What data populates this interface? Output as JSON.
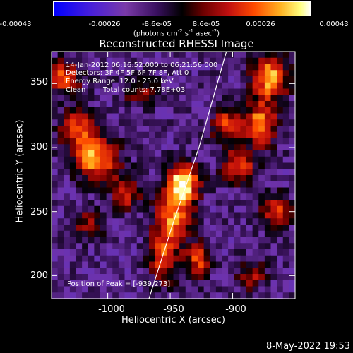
{
  "chart_data": {
    "type": "heatmap",
    "title": "Reconstructed RHESSI Image",
    "xlabel": "Heliocentric X (arcsec)",
    "ylabel": "Heliocentric Y (arcsec)",
    "xlim": [
      -1045,
      -850
    ],
    "ylim": [
      182,
      375
    ],
    "xticks": [
      "-1000",
      "-950",
      "-900"
    ],
    "yticks": [
      "350",
      "300",
      "250",
      "200"
    ],
    "xtick_values": [
      -1000,
      -950,
      -900
    ],
    "ytick_values": [
      350,
      300,
      250,
      200
    ],
    "colorbar": {
      "ticks": [
        "-0.00043",
        "-0.00026",
        "-8.6e-05",
        "8.6e-05",
        "0.00026",
        "0.00043"
      ],
      "range": [
        -0.00043,
        0.00043
      ],
      "unit": "(photons cm",
      "unit_exp1": "-2",
      "unit_mid": " s",
      "unit_exp2": "-1",
      "unit_end": " asec",
      "unit_exp3": "-2",
      "unit_close": ")"
    },
    "annotations": {
      "time_range": "14-Jan-2012 06:16:52.000 to 06:21:56.000",
      "detectors": "Detectors: 3F 4F 5F 6F 7F 8F, Att 0",
      "energy": "Energy Range: 12.0 - 25.0 keV",
      "clean": "Clean",
      "total_counts": "Total counts: 7.78E+03",
      "peak": "Position of Peak = [-939,273]"
    },
    "peak": {
      "x": -939,
      "y": 273
    },
    "sources": [
      {
        "x": -939,
        "y": 273,
        "sx": 9,
        "sy": 10,
        "a": 1.0
      },
      {
        "x": -948,
        "y": 248,
        "sx": 10,
        "sy": 14,
        "a": 0.75
      },
      {
        "x": -955,
        "y": 215,
        "sx": 8,
        "sy": 14,
        "a": 0.65
      },
      {
        "x": -928,
        "y": 212,
        "sx": 7,
        "sy": 10,
        "a": 0.6
      },
      {
        "x": -1010,
        "y": 292,
        "sx": 12,
        "sy": 12,
        "a": 0.85
      },
      {
        "x": -1025,
        "y": 315,
        "sx": 10,
        "sy": 10,
        "a": 0.6
      },
      {
        "x": -985,
        "y": 265,
        "sx": 8,
        "sy": 10,
        "a": 0.55
      },
      {
        "x": -870,
        "y": 355,
        "sx": 10,
        "sy": 12,
        "a": 0.85
      },
      {
        "x": -878,
        "y": 318,
        "sx": 9,
        "sy": 12,
        "a": 0.8
      },
      {
        "x": -905,
        "y": 318,
        "sx": 8,
        "sy": 10,
        "a": 0.6
      },
      {
        "x": -895,
        "y": 285,
        "sx": 9,
        "sy": 9,
        "a": 0.65
      },
      {
        "x": -865,
        "y": 250,
        "sx": 8,
        "sy": 10,
        "a": 0.6
      },
      {
        "x": -1035,
        "y": 355,
        "sx": 9,
        "sy": 9,
        "a": 0.65
      },
      {
        "x": -1015,
        "y": 240,
        "sx": 8,
        "sy": 8,
        "a": 0.45
      },
      {
        "x": -885,
        "y": 200,
        "sx": 8,
        "sy": 8,
        "a": 0.45
      },
      {
        "x": -975,
        "y": 345,
        "sx": 10,
        "sy": 8,
        "a": 0.4
      }
    ],
    "limb": [
      {
        "x": -967,
        "y": 182
      },
      {
        "x": -948,
        "y": 240
      },
      {
        "x": -927,
        "y": 300
      },
      {
        "x": -905,
        "y": 375
      }
    ]
  },
  "footer": {
    "date": "8-May-2022 19:53"
  }
}
